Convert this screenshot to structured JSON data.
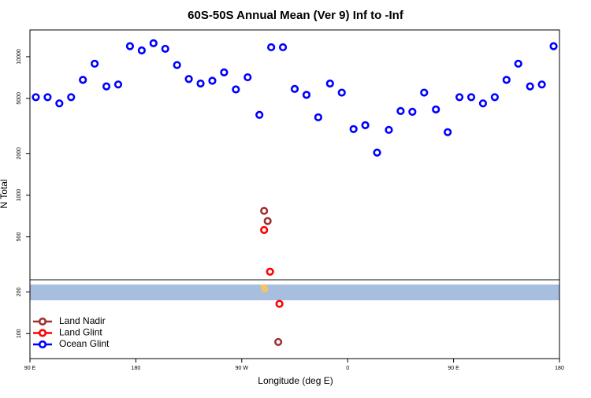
{
  "chart_data": {
    "type": "scatter",
    "title": "60S-50S Annual Mean (Ver 9)   Inf to -Inf",
    "x_label": "Longitude (deg E)",
    "y_label": "N Total",
    "log_y": true,
    "legend": "bottom-left",
    "xlim": [
      90,
      540
    ],
    "xticks": [
      {
        "value": 90,
        "label": "90 E"
      },
      {
        "value": 180,
        "label": "180"
      },
      {
        "value": 270,
        "label": "90 W"
      },
      {
        "value": 360,
        "label": "0"
      },
      {
        "value": 450,
        "label": "90 E"
      },
      {
        "value": 540,
        "label": "180"
      }
    ],
    "ylim": [
      66,
      15600
    ],
    "yticks": [
      100,
      200,
      500,
      1000,
      2000,
      5000,
      10000
    ],
    "series": [
      {
        "name": "Land Nadir",
        "color": "#a03030",
        "x": [
          289,
          292,
          301
        ],
        "values": [
          770,
          650,
          87
        ]
      },
      {
        "name": "Land Glint",
        "color": "#ff0000",
        "x": [
          289,
          294,
          302
        ],
        "values": [
          560,
          280,
          164
        ]
      },
      {
        "name": "Ocean Glint",
        "color": "#0000ff",
        "x": [
          95,
          105,
          115,
          125,
          135,
          145,
          155,
          165,
          175,
          185,
          195,
          205,
          215,
          225,
          235,
          245,
          255,
          265,
          275,
          285,
          295,
          305,
          315,
          325,
          335,
          345,
          355,
          365,
          375,
          385,
          395,
          405,
          415,
          425,
          435,
          445,
          455,
          465,
          475,
          485,
          495,
          505,
          515,
          525,
          535
        ],
        "values": [
          5100,
          5100,
          4600,
          5100,
          6800,
          8900,
          6100,
          6300,
          11900,
          11100,
          12500,
          11400,
          8700,
          6900,
          6400,
          6700,
          7700,
          5800,
          7100,
          3800,
          11700,
          11700,
          5850,
          5300,
          3650,
          6400,
          5500,
          3000,
          3200,
          2030,
          2960,
          4050,
          4000,
          5500,
          4160,
          2850,
          5100,
          5100,
          4600,
          5100,
          6800,
          8900,
          6100,
          6300,
          11900
        ]
      }
    ]
  }
}
